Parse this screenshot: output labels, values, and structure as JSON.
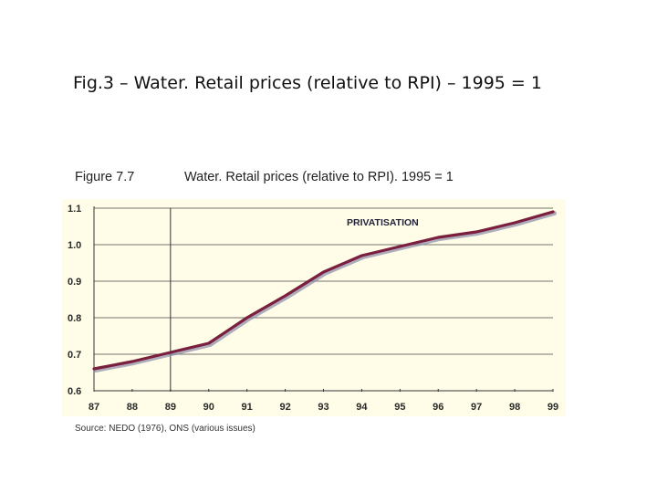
{
  "slide": {
    "title": "Fig.3 – Water. Retail prices (relative to RPI) – 1995 = 1"
  },
  "figure": {
    "label": "Figure 7.7",
    "caption": "Water. Retail prices (relative to RPI). 1995 = 1",
    "source": "Source: NEDO (1976), ONS (various issues)"
  },
  "chart_data": {
    "type": "line",
    "title": "",
    "xlabel": "",
    "ylabel": "",
    "x": [
      "87",
      "88",
      "89",
      "90",
      "91",
      "92",
      "93",
      "94",
      "95",
      "96",
      "97",
      "98",
      "99"
    ],
    "series": [
      {
        "values": [
          0.66,
          0.68,
          0.705,
          0.73,
          0.8,
          0.86,
          0.925,
          0.97,
          0.995,
          1.02,
          1.035,
          1.06,
          1.09
        ]
      }
    ],
    "y_ticks": [
      "0.6",
      "0.7",
      "0.8",
      "0.9",
      "1.0",
      "1.1"
    ],
    "ylim": [
      0.6,
      1.1
    ],
    "grid": true,
    "annotations": [
      {
        "text": "PRIVATISATION",
        "x": "89"
      }
    ],
    "colors": {
      "plot_background": "#fffde8",
      "line": "#7a1f3d",
      "line_shadow": "#8a8aa8",
      "grid": "#444444"
    }
  }
}
